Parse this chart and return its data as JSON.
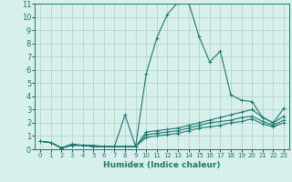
{
  "xlabel": "Humidex (Indice chaleur)",
  "ylabel": "",
  "xlim": [
    -0.5,
    23.5
  ],
  "ylim": [
    0,
    11
  ],
  "xticks": [
    0,
    1,
    2,
    3,
    4,
    5,
    6,
    7,
    8,
    9,
    10,
    11,
    12,
    13,
    14,
    15,
    16,
    17,
    18,
    19,
    20,
    21,
    22,
    23
  ],
  "yticks": [
    0,
    1,
    2,
    3,
    4,
    5,
    6,
    7,
    8,
    9,
    10,
    11
  ],
  "bg_color": "#d7f0ec",
  "grid_color": "#aacfc8",
  "line_color": "#1a7a6e",
  "series": [
    {
      "x": [
        0,
        1,
        2,
        3,
        4,
        5,
        6,
        7,
        8,
        9,
        10,
        11,
        12,
        13,
        14,
        15,
        16,
        17,
        18,
        19,
        20,
        21,
        22,
        23
      ],
      "y": [
        0.6,
        0.5,
        0.1,
        0.4,
        0.3,
        0.3,
        0.2,
        0.2,
        2.6,
        0.2,
        5.7,
        8.4,
        10.2,
        11.1,
        11.1,
        8.5,
        6.6,
        7.4,
        4.1,
        3.7,
        3.6,
        2.4,
        2.0,
        3.1
      ]
    },
    {
      "x": [
        0,
        1,
        2,
        3,
        4,
        5,
        6,
        7,
        8,
        9,
        10,
        11,
        12,
        13,
        14,
        15,
        16,
        17,
        18,
        19,
        20,
        21,
        22,
        23
      ],
      "y": [
        0.6,
        0.5,
        0.1,
        0.3,
        0.3,
        0.2,
        0.2,
        0.2,
        0.2,
        0.2,
        1.3,
        1.4,
        1.5,
        1.6,
        1.8,
        2.0,
        2.2,
        2.4,
        2.6,
        2.8,
        3.0,
        2.4,
        2.0,
        2.5
      ]
    },
    {
      "x": [
        0,
        1,
        2,
        3,
        4,
        5,
        6,
        7,
        8,
        9,
        10,
        11,
        12,
        13,
        14,
        15,
        16,
        17,
        18,
        19,
        20,
        21,
        22,
        23
      ],
      "y": [
        0.6,
        0.5,
        0.1,
        0.3,
        0.3,
        0.2,
        0.2,
        0.2,
        0.2,
        0.2,
        1.1,
        1.2,
        1.3,
        1.4,
        1.6,
        1.8,
        2.0,
        2.1,
        2.2,
        2.4,
        2.5,
        2.1,
        1.8,
        2.2
      ]
    },
    {
      "x": [
        0,
        1,
        2,
        3,
        4,
        5,
        6,
        7,
        8,
        9,
        10,
        11,
        12,
        13,
        14,
        15,
        16,
        17,
        18,
        19,
        20,
        21,
        22,
        23
      ],
      "y": [
        0.6,
        0.5,
        0.1,
        0.3,
        0.3,
        0.2,
        0.2,
        0.2,
        0.2,
        0.2,
        0.9,
        1.0,
        1.1,
        1.2,
        1.4,
        1.6,
        1.7,
        1.8,
        2.0,
        2.1,
        2.3,
        1.9,
        1.7,
        2.0
      ]
    }
  ]
}
